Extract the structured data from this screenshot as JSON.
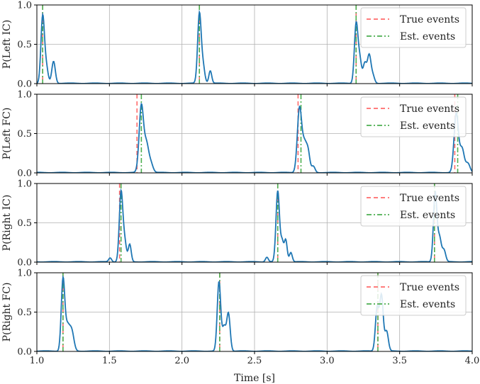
{
  "chart_data": {
    "type": "line",
    "xlabel": "Time [s]",
    "xlim": [
      1.0,
      4.0
    ],
    "x_ticks": [
      1.0,
      1.5,
      2.0,
      2.5,
      3.0,
      3.5,
      4.0
    ],
    "x_tick_labels": [
      "1.0",
      "1.5",
      "2.0",
      "2.5",
      "3.0",
      "3.5",
      "4.0"
    ],
    "grid": true,
    "colors": {
      "prob": "#1f77b4",
      "true": "#ff6b6b",
      "est": "#4caf50"
    },
    "legend_labels": {
      "true": "True events",
      "est": "Est. events"
    },
    "panels": [
      {
        "ylabel": "P(Left IC)",
        "ylim": [
          0,
          1
        ],
        "y_ticks": [
          0,
          0.5,
          1
        ],
        "y_tick_labels": [
          "0.0",
          "0.5",
          "1.0"
        ],
        "legend_position": "top-right",
        "true_events": [
          1.04,
          2.12,
          3.2
        ],
        "est_events": [
          1.04,
          2.12,
          3.2
        ],
        "peaks": [
          [
            1.04,
            0.85,
            0.012
          ],
          [
            1.065,
            0.2,
            0.012
          ],
          [
            1.115,
            0.28,
            0.012
          ],
          [
            2.12,
            0.88,
            0.012
          ],
          [
            2.145,
            0.22,
            0.012
          ],
          [
            2.195,
            0.16,
            0.01
          ],
          [
            3.2,
            0.75,
            0.012
          ],
          [
            3.225,
            0.3,
            0.012
          ],
          [
            3.26,
            0.25,
            0.012
          ],
          [
            3.29,
            0.35,
            0.012
          ],
          [
            3.315,
            0.1,
            0.012
          ]
        ]
      },
      {
        "ylabel": "P(Left FC)",
        "ylim": [
          0,
          1
        ],
        "y_ticks": [
          0,
          0.5,
          1
        ],
        "y_tick_labels": [
          "0.0",
          "0.5",
          "1.0"
        ],
        "legend_position": "top-right",
        "true_events": [
          1.69,
          2.8,
          3.88
        ],
        "est_events": [
          1.72,
          2.82,
          3.9
        ],
        "peaks": [
          [
            1.72,
            0.85,
            0.015
          ],
          [
            1.755,
            0.35,
            0.015
          ],
          [
            1.785,
            0.12,
            0.015
          ],
          [
            2.81,
            0.82,
            0.015
          ],
          [
            2.845,
            0.35,
            0.015
          ],
          [
            2.87,
            0.22,
            0.012
          ],
          [
            2.905,
            0.08,
            0.012
          ],
          [
            3.89,
            0.75,
            0.015
          ],
          [
            3.93,
            0.3,
            0.015
          ],
          [
            3.97,
            0.12,
            0.015
          ]
        ]
      },
      {
        "ylabel": "P(Right IC)",
        "ylim": [
          0,
          1
        ],
        "y_ticks": [
          0,
          0.5,
          1
        ],
        "y_tick_labels": [
          "0.0",
          "0.5",
          "1.0"
        ],
        "legend_position": "top-right",
        "true_events": [
          1.57,
          2.66,
          3.74
        ],
        "est_events": [
          1.58,
          2.66,
          3.74
        ],
        "peaks": [
          [
            1.58,
            0.88,
            0.012
          ],
          [
            1.605,
            0.25,
            0.012
          ],
          [
            1.64,
            0.22,
            0.01
          ],
          [
            1.505,
            0.05,
            0.01
          ],
          [
            2.66,
            0.9,
            0.012
          ],
          [
            2.69,
            0.25,
            0.01
          ],
          [
            2.715,
            0.28,
            0.01
          ],
          [
            2.75,
            0.12,
            0.01
          ],
          [
            2.585,
            0.06,
            0.01
          ],
          [
            3.745,
            0.88,
            0.012
          ],
          [
            3.775,
            0.3,
            0.012
          ],
          [
            3.805,
            0.15,
            0.012
          ]
        ]
      },
      {
        "ylabel": "P(Right FC)",
        "ylim": [
          0,
          1
        ],
        "y_ticks": [
          0,
          0.5,
          1
        ],
        "y_tick_labels": [
          "0.0",
          "0.5",
          "1.0"
        ],
        "legend_position": "top-right",
        "true_events": [
          1.18,
          2.26,
          3.35
        ],
        "est_events": [
          1.18,
          2.26,
          3.35
        ],
        "peaks": [
          [
            1.18,
            0.9,
            0.012
          ],
          [
            1.21,
            0.3,
            0.015
          ],
          [
            1.24,
            0.25,
            0.015
          ],
          [
            2.255,
            0.88,
            0.012
          ],
          [
            2.29,
            0.3,
            0.012
          ],
          [
            2.32,
            0.48,
            0.012
          ],
          [
            3.345,
            0.55,
            0.012
          ],
          [
            3.375,
            0.7,
            0.012
          ],
          [
            3.41,
            0.25,
            0.012
          ]
        ]
      }
    ]
  }
}
